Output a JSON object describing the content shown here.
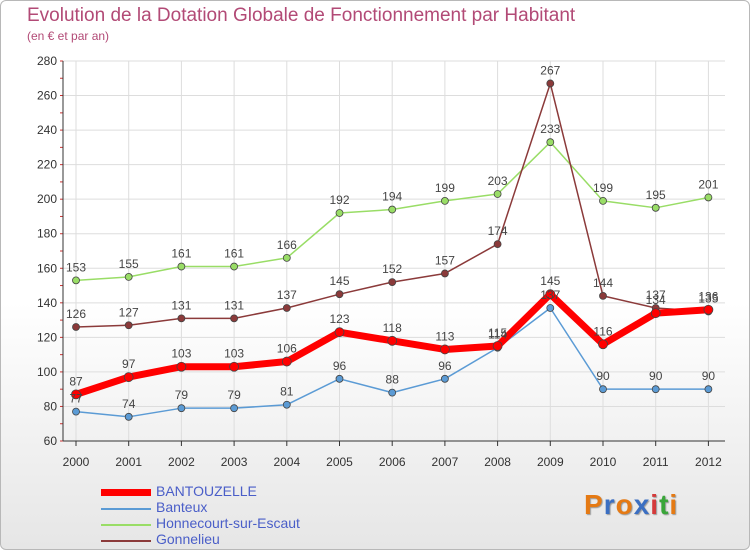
{
  "title": "Evolution de la Dotation Globale de Fonctionnement par Habitant",
  "subtitle": "(en € et par an)",
  "logo": {
    "text": "Proxiti",
    "colors": [
      "#e57a14",
      "#3b6fc2",
      "#e57a14",
      "#3b6fc2",
      "#d43a3a",
      "#3aa63a",
      "#e57a14"
    ]
  },
  "chart_data": {
    "type": "line",
    "title": "Evolution de la Dotation Globale de Fonctionnement par Habitant",
    "ylabel": "(en € et par an)",
    "xlabel": "",
    "ylim": [
      60,
      280
    ],
    "yticks": [
      60,
      80,
      100,
      120,
      140,
      160,
      180,
      200,
      220,
      240,
      260,
      280
    ],
    "categories": [
      "2000",
      "2001",
      "2002",
      "2003",
      "2004",
      "2005",
      "2006",
      "2007",
      "2008",
      "2009",
      "2010",
      "2011",
      "2012"
    ],
    "series": [
      {
        "name": "BANTOUZELLE",
        "color": "#ff0000",
        "width": 7,
        "values": [
          87,
          97,
          103,
          103,
          106,
          123,
          118,
          113,
          115,
          145,
          116,
          134,
          136
        ]
      },
      {
        "name": "Banteux",
        "color": "#5b9bd5",
        "width": 1.5,
        "values": [
          77,
          74,
          79,
          79,
          81,
          96,
          88,
          96,
          114,
          137,
          90,
          90,
          90
        ]
      },
      {
        "name": "Honnecourt-sur-Escaut",
        "color": "#99dd66",
        "width": 1.5,
        "values": [
          153,
          155,
          161,
          161,
          166,
          192,
          194,
          199,
          203,
          233,
          199,
          195,
          201
        ]
      },
      {
        "name": "Gonnelieu",
        "color": "#8b3a3a",
        "width": 1.5,
        "values": [
          126,
          127,
          131,
          131,
          137,
          145,
          152,
          157,
          174,
          267,
          144,
          137,
          135
        ]
      }
    ]
  }
}
